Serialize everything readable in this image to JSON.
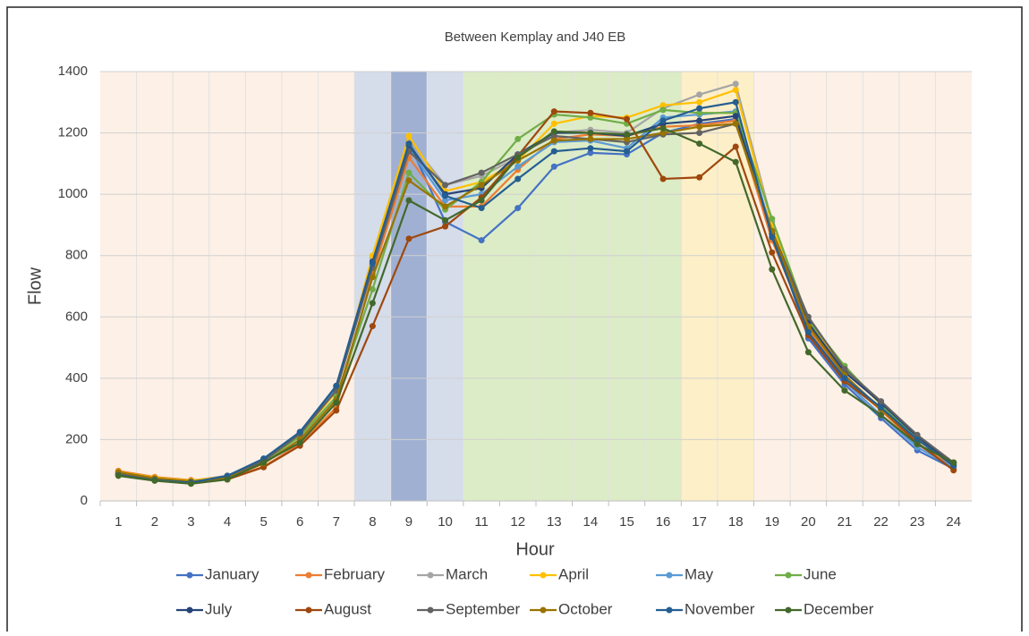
{
  "chart_data": {
    "type": "line",
    "title": "Between Kemplay and J40 EB",
    "x_label": "Hour",
    "y_label": "Flow",
    "categories": [
      "1",
      "2",
      "3",
      "4",
      "5",
      "6",
      "7",
      "8",
      "9",
      "10",
      "11",
      "12",
      "13",
      "14",
      "15",
      "16",
      "17",
      "18",
      "19",
      "20",
      "21",
      "22",
      "23",
      "24"
    ],
    "ylim": [
      0,
      1400
    ],
    "yticks": [
      0,
      200,
      400,
      600,
      800,
      1000,
      1200,
      1400
    ],
    "grid": true,
    "legend": "bottom",
    "series": [
      {
        "name": "January",
        "color": "#4472c4",
        "values": [
          88,
          68,
          58,
          78,
          128,
          215,
          360,
          765,
          1170,
          910,
          850,
          955,
          1090,
          1135,
          1130,
          1200,
          1230,
          1245,
          880,
          530,
          380,
          270,
          165,
          105
        ]
      },
      {
        "name": "February",
        "color": "#ed7d31",
        "values": [
          98,
          78,
          68,
          72,
          112,
          185,
          305,
          740,
          1120,
          960,
          960,
          1080,
          1180,
          1195,
          1190,
          1220,
          1225,
          1240,
          850,
          560,
          400,
          295,
          185,
          110
        ]
      },
      {
        "name": "March",
        "color": "#a5a5a5",
        "values": [
          92,
          74,
          66,
          82,
          135,
          222,
          370,
          790,
          1175,
          1030,
          1060,
          1120,
          1200,
          1210,
          1200,
          1280,
          1325,
          1360,
          910,
          590,
          430,
          320,
          210,
          125
        ]
      },
      {
        "name": "April",
        "color": "#ffc000",
        "values": [
          95,
          76,
          66,
          80,
          130,
          215,
          355,
          800,
          1190,
          1010,
          1040,
          1110,
          1230,
          1255,
          1250,
          1290,
          1300,
          1340,
          900,
          580,
          430,
          315,
          205,
          120
        ]
      },
      {
        "name": "May",
        "color": "#5b9bd5",
        "values": [
          85,
          67,
          60,
          80,
          132,
          220,
          365,
          770,
          1150,
          980,
          1000,
          1090,
          1170,
          1175,
          1150,
          1250,
          1260,
          1270,
          880,
          540,
          390,
          280,
          175,
          110
        ]
      },
      {
        "name": "June",
        "color": "#70ad47",
        "values": [
          90,
          72,
          62,
          78,
          128,
          210,
          340,
          690,
          1070,
          950,
          1040,
          1180,
          1260,
          1250,
          1230,
          1275,
          1265,
          1265,
          920,
          590,
          440,
          315,
          200,
          125
        ]
      },
      {
        "name": "July",
        "color": "#264478",
        "values": [
          86,
          70,
          60,
          80,
          134,
          222,
          375,
          780,
          1160,
          1000,
          1020,
          1130,
          1200,
          1200,
          1190,
          1230,
          1240,
          1255,
          870,
          580,
          420,
          320,
          210,
          120
        ]
      },
      {
        "name": "August",
        "color": "#9e480e",
        "values": [
          92,
          72,
          62,
          70,
          110,
          180,
          295,
          570,
          855,
          895,
          990,
          1125,
          1270,
          1265,
          1245,
          1050,
          1055,
          1155,
          810,
          540,
          390,
          300,
          190,
          100
        ]
      },
      {
        "name": "September",
        "color": "#636363",
        "values": [
          88,
          70,
          60,
          80,
          130,
          218,
          360,
          760,
          1140,
          1030,
          1070,
          1130,
          1190,
          1180,
          1170,
          1195,
          1200,
          1230,
          880,
          600,
          430,
          325,
          215,
          125
        ]
      },
      {
        "name": "October",
        "color": "#997300",
        "values": [
          94,
          74,
          64,
          75,
          122,
          200,
          330,
          730,
          1045,
          960,
          1030,
          1110,
          1175,
          1180,
          1180,
          1200,
          1220,
          1230,
          880,
          570,
          410,
          300,
          200,
          115
        ]
      },
      {
        "name": "November",
        "color": "#255e91",
        "values": [
          84,
          68,
          60,
          82,
          138,
          225,
          375,
          775,
          1165,
          995,
          955,
          1050,
          1140,
          1150,
          1140,
          1240,
          1280,
          1300,
          860,
          550,
          400,
          305,
          200,
          115
        ]
      },
      {
        "name": "December",
        "color": "#43682b",
        "values": [
          82,
          66,
          56,
          70,
          125,
          190,
          320,
          645,
          980,
          915,
          980,
          1120,
          1205,
          1200,
          1195,
          1215,
          1165,
          1105,
          755,
          485,
          360,
          280,
          185,
          125
        ]
      }
    ]
  }
}
